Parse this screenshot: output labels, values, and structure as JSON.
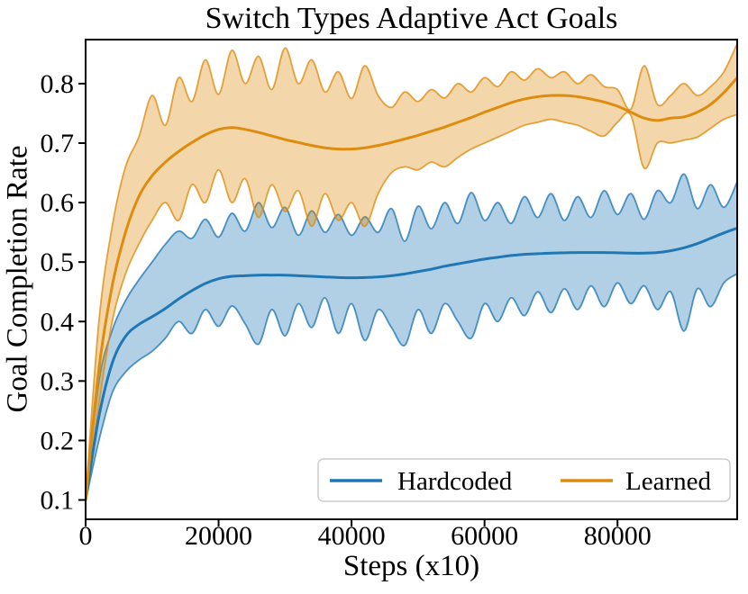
{
  "chart_data": {
    "type": "line",
    "title": "Switch Types Adaptive Act Goals",
    "xlabel": "Steps (x10)",
    "ylabel": "Goal Completion Rate",
    "xlim": [
      0,
      98000
    ],
    "ylim": [
      0.0675,
      0.874
    ],
    "xticks": [
      0,
      20000,
      40000,
      60000,
      80000
    ],
    "yticks": [
      0.1,
      0.2,
      0.3,
      0.4,
      0.5,
      0.6,
      0.7,
      0.8
    ],
    "grid": false,
    "legend_position": "lower right",
    "band_alpha": 0.35,
    "band_edge_alpha": 0.78,
    "x": [
      0,
      2000,
      4000,
      6000,
      8000,
      10000,
      12000,
      14000,
      16000,
      18000,
      20000,
      22000,
      24000,
      26000,
      28000,
      30000,
      32000,
      34000,
      36000,
      38000,
      40000,
      42000,
      44000,
      46000,
      48000,
      50000,
      52000,
      54000,
      56000,
      58000,
      60000,
      62000,
      64000,
      66000,
      68000,
      70000,
      72000,
      74000,
      76000,
      78000,
      80000,
      82000,
      84000,
      86000,
      88000,
      90000,
      92000,
      94000,
      96000,
      98000
    ],
    "series": [
      {
        "name": "Hardcoded",
        "color": "#1f77b4",
        "mean": [
          0.1,
          0.24,
          0.33,
          0.375,
          0.395,
          0.408,
          0.422,
          0.438,
          0.452,
          0.464,
          0.472,
          0.476,
          0.477,
          0.478,
          0.478,
          0.478,
          0.477,
          0.476,
          0.475,
          0.474,
          0.4735,
          0.474,
          0.475,
          0.477,
          0.48,
          0.484,
          0.488,
          0.493,
          0.497,
          0.501,
          0.505,
          0.508,
          0.511,
          0.513,
          0.514,
          0.515,
          0.5155,
          0.516,
          0.516,
          0.516,
          0.5155,
          0.515,
          0.515,
          0.516,
          0.519,
          0.524,
          0.531,
          0.54,
          0.549,
          0.557
        ],
        "upper": [
          0.102,
          0.3,
          0.385,
          0.435,
          0.47,
          0.5,
          0.53,
          0.552,
          0.54,
          0.572,
          0.542,
          0.582,
          0.552,
          0.6,
          0.558,
          0.592,
          0.545,
          0.586,
          0.55,
          0.58,
          0.545,
          0.576,
          0.55,
          0.59,
          0.535,
          0.594,
          0.556,
          0.6,
          0.565,
          0.617,
          0.57,
          0.6,
          0.565,
          0.61,
          0.575,
          0.615,
          0.57,
          0.61,
          0.575,
          0.62,
          0.58,
          0.615,
          0.572,
          0.62,
          0.6,
          0.648,
          0.59,
          0.63,
          0.592,
          0.635
        ],
        "lower": [
          0.098,
          0.2,
          0.28,
          0.315,
          0.335,
          0.35,
          0.372,
          0.4,
          0.38,
          0.42,
          0.392,
          0.426,
          0.396,
          0.362,
          0.42,
          0.376,
          0.43,
          0.39,
          0.44,
          0.38,
          0.43,
          0.368,
          0.42,
          0.39,
          0.36,
          0.42,
          0.38,
          0.43,
          0.4,
          0.372,
          0.43,
          0.4,
          0.44,
          0.41,
          0.45,
          0.415,
          0.455,
          0.42,
          0.46,
          0.425,
          0.465,
          0.43,
          0.46,
          0.42,
          0.45,
          0.384,
          0.455,
          0.425,
          0.465,
          0.48
        ]
      },
      {
        "name": "Learned",
        "color": "#de8c0e",
        "mean": [
          0.1,
          0.32,
          0.46,
          0.55,
          0.61,
          0.645,
          0.668,
          0.686,
          0.701,
          0.714,
          0.723,
          0.726,
          0.723,
          0.718,
          0.712,
          0.706,
          0.701,
          0.696,
          0.692,
          0.69,
          0.69,
          0.692,
          0.696,
          0.701,
          0.707,
          0.713,
          0.72,
          0.727,
          0.735,
          0.743,
          0.752,
          0.76,
          0.768,
          0.774,
          0.778,
          0.78,
          0.78,
          0.778,
          0.774,
          0.769,
          0.762,
          0.752,
          0.742,
          0.738,
          0.742,
          0.744,
          0.752,
          0.765,
          0.785,
          0.81
        ],
        "upper": [
          0.102,
          0.4,
          0.56,
          0.66,
          0.71,
          0.78,
          0.73,
          0.81,
          0.77,
          0.84,
          0.782,
          0.856,
          0.8,
          0.846,
          0.79,
          0.86,
          0.8,
          0.84,
          0.786,
          0.82,
          0.775,
          0.83,
          0.78,
          0.76,
          0.786,
          0.77,
          0.79,
          0.776,
          0.8,
          0.786,
          0.81,
          0.795,
          0.82,
          0.806,
          0.825,
          0.81,
          0.82,
          0.8,
          0.815,
          0.795,
          0.79,
          0.757,
          0.83,
          0.765,
          0.78,
          0.8,
          0.78,
          0.795,
          0.82,
          0.867
        ],
        "lower": [
          0.098,
          0.26,
          0.4,
          0.48,
          0.53,
          0.57,
          0.6,
          0.57,
          0.63,
          0.6,
          0.655,
          0.6,
          0.64,
          0.575,
          0.63,
          0.585,
          0.62,
          0.56,
          0.615,
          0.57,
          0.6,
          0.56,
          0.615,
          0.65,
          0.66,
          0.655,
          0.668,
          0.66,
          0.676,
          0.69,
          0.7,
          0.71,
          0.72,
          0.73,
          0.735,
          0.74,
          0.735,
          0.73,
          0.72,
          0.712,
          0.735,
          0.747,
          0.658,
          0.7,
          0.7,
          0.705,
          0.71,
          0.725,
          0.74,
          0.748
        ]
      }
    ]
  }
}
